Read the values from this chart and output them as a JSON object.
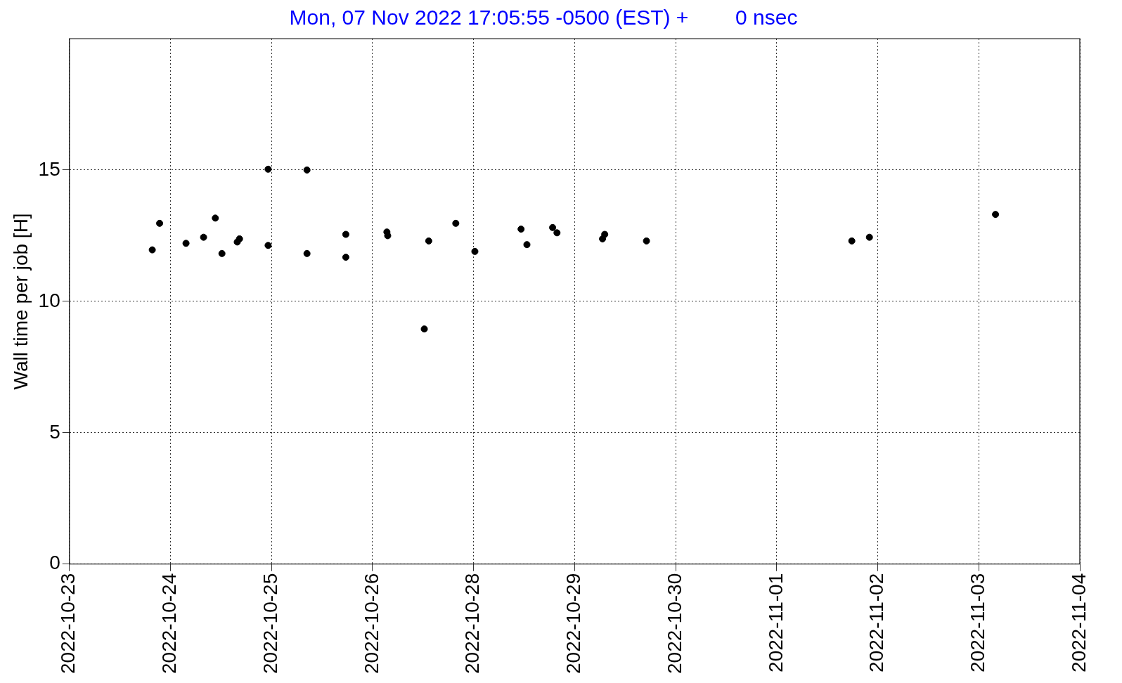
{
  "chart_data": {
    "type": "scatter",
    "title": "Mon, 07 Nov 2022 17:05:55 -0500 (EST) +        0 nsec",
    "ylabel": "Wall time per job [H]",
    "x": [
      "2022-10-24T00:36",
      "2022-10-24T02:47",
      "2022-10-24T10:37",
      "2022-10-24T15:50",
      "2022-10-24T19:19",
      "2022-10-24T21:17",
      "2022-10-25T01:50",
      "2022-10-25T02:30",
      "2022-10-25T11:00",
      "2022-10-25T11:00",
      "2022-10-25T22:32",
      "2022-10-25T22:32",
      "2022-10-26T10:04",
      "2022-10-26T10:04",
      "2022-10-26T22:16",
      "2022-10-26T22:30",
      "2022-10-27T09:22",
      "2022-10-27T10:41",
      "2022-10-27T18:43",
      "2022-10-28T00:23",
      "2022-10-28T14:06",
      "2022-10-28T15:50",
      "2022-10-28T23:28",
      "2022-10-29T00:46",
      "2022-10-29T14:17",
      "2022-10-29T14:56",
      "2022-10-30T03:20",
      "2022-11-01T16:18",
      "2022-11-01T21:32",
      "2022-11-03T10:58"
    ],
    "values": [
      11.96,
      12.97,
      12.21,
      12.44,
      13.17,
      11.82,
      12.26,
      12.38,
      15.03,
      12.13,
      15.0,
      11.82,
      12.55,
      11.68,
      12.64,
      12.5,
      8.95,
      12.3,
      12.97,
      11.9,
      12.75,
      12.16,
      12.81,
      12.61,
      12.38,
      12.55,
      12.3,
      12.3,
      12.44,
      13.31
    ],
    "color": "#000000",
    "marker": "circle",
    "grid": true,
    "legend": false,
    "xlim": [
      "2022-10-23T00:00",
      "2022-11-04T12:00"
    ],
    "xticks": [
      {
        "value": "2022-10-23T00:00",
        "label": "2022-10-23"
      },
      {
        "value": "2022-10-24T06:00",
        "label": "2022-10-24"
      },
      {
        "value": "2022-10-25T12:00",
        "label": "2022-10-25"
      },
      {
        "value": "2022-10-26T18:00",
        "label": "2022-10-26"
      },
      {
        "value": "2022-10-28T00:00",
        "label": "2022-10-28"
      },
      {
        "value": "2022-10-29T06:00",
        "label": "2022-10-29"
      },
      {
        "value": "2022-10-30T12:00",
        "label": "2022-10-30"
      },
      {
        "value": "2022-10-31T18:00",
        "label": "2022-11-01"
      },
      {
        "value": "2022-11-02T00:00",
        "label": "2022-11-02"
      },
      {
        "value": "2022-11-03T06:00",
        "label": "2022-11-03"
      },
      {
        "value": "2022-11-04T12:00",
        "label": "2022-11-04"
      }
    ],
    "ylim": [
      0,
      20
    ],
    "yticks": [
      0,
      5,
      10,
      15
    ]
  }
}
